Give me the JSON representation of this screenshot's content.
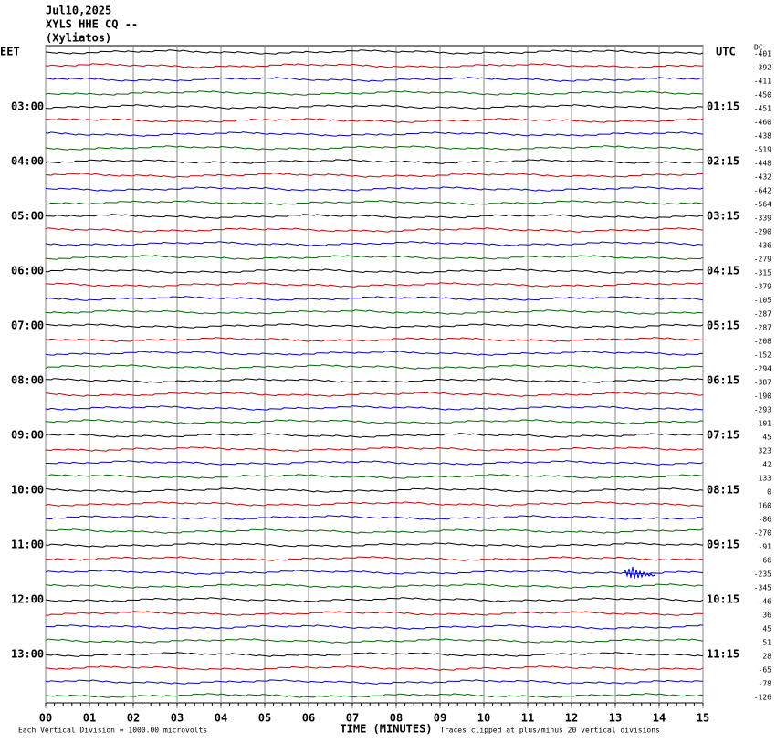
{
  "chart_data": {
    "type": "helicorder",
    "title": [
      "Jul10,2025",
      "XYLS HHE CQ --",
      "(Xyliatos)"
    ],
    "left_zone": "EET",
    "right_zone": "UTC",
    "dc_label": "DC",
    "left_times": [
      "03:00",
      "04:00",
      "05:00",
      "06:00",
      "07:00",
      "08:00",
      "09:00",
      "10:00",
      "11:00",
      "12:00",
      "13:00"
    ],
    "right_times": [
      "01:15",
      "02:15",
      "03:15",
      "04:15",
      "05:15",
      "06:15",
      "07:15",
      "08:15",
      "09:15",
      "10:15",
      "11:15"
    ],
    "dc_offsets": [
      -401,
      -392,
      -411,
      -450,
      -451,
      -460,
      -438,
      -519,
      -448,
      -432,
      -642,
      -564,
      -339,
      -290,
      -436,
      -279,
      -315,
      -379,
      -105,
      -287,
      -287,
      -208,
      -152,
      -294,
      -387,
      -190,
      -293,
      -101,
      45,
      323,
      42,
      133,
      0,
      160,
      -86,
      -270,
      -91,
      66,
      -235,
      -345,
      -46,
      36,
      45,
      51,
      28,
      -65,
      -78,
      -126
    ],
    "trace_colors": [
      "#000000",
      "#cc0000",
      "#0000cc",
      "#006600"
    ],
    "xlim": [
      0,
      15
    ],
    "xticks": [
      {
        "value": 0,
        "label": "00"
      },
      {
        "value": 1,
        "label": "01"
      },
      {
        "value": 2,
        "label": "02"
      },
      {
        "value": 3,
        "label": "03"
      },
      {
        "value": 4,
        "label": "04"
      },
      {
        "value": 5,
        "label": "05"
      },
      {
        "value": 6,
        "label": "06"
      },
      {
        "value": 7,
        "label": "07"
      },
      {
        "value": 8,
        "label": "08"
      },
      {
        "value": 9,
        "label": "09"
      },
      10,
      11,
      12,
      13,
      14,
      15
    ],
    "xlabel": "TIME (MINUTES)",
    "scale_note": "Each Vertical Division = 1000.00 microvolts",
    "clip_note": "Traces clipped at plus/minus 20 vertical divisions"
  }
}
